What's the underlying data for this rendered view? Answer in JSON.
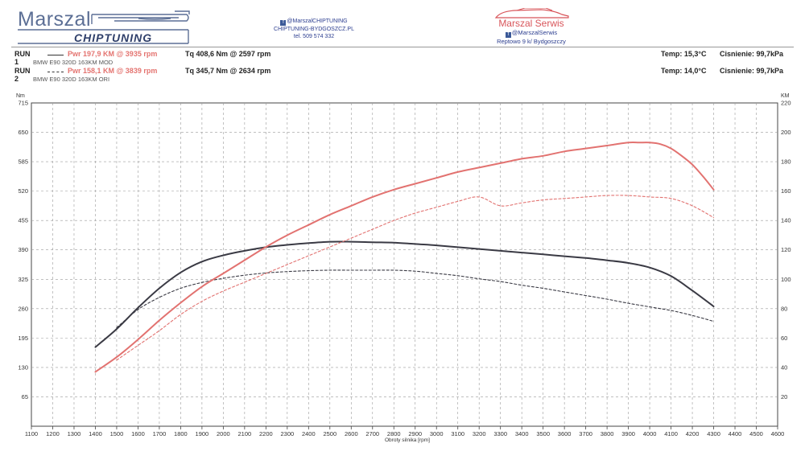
{
  "header": {
    "brand_top": "Marszal",
    "brand_bottom": "CHIPTUNING",
    "contact": {
      "facebook": "@MarszalCHIPTUNING",
      "website": "CHIPTUNING-BYDGOSZCZ.PL",
      "phone": "tel. 509 574 332"
    },
    "serwis": {
      "name": "Marszal Serwis",
      "facebook": "@MarszalSerwis",
      "address": "Reptowo 9 k/ Bydgoszczy"
    }
  },
  "runs": [
    {
      "label": "RUN 1",
      "pwr": "Pwr  197,9 KM @ 3935 rpm",
      "tq": "Tq  408,6 Nm @ 2597 rpm",
      "car": "BMW E90 320D 163KM MOD",
      "temp": "Temp: 15,3°C",
      "pressure": "Cisnienie: 99,7kPa",
      "style": "solid"
    },
    {
      "label": "RUN 2",
      "pwr": "Pwr  158,1 KM @ 3839 rpm",
      "tq": "Tq  345,7 Nm @ 2634 rpm",
      "car": "BMW E90 320D 163KM ORI",
      "temp": "Temp: 14,0°C",
      "pressure": "Cisnienie: 99,7kPa",
      "style": "dashed"
    }
  ],
  "chart_data": {
    "type": "line",
    "xlabel": "Obroty silnika [rpm]",
    "ylabel_left": "Nm",
    "ylabel_right": "KM",
    "xlim": [
      1100,
      4600
    ],
    "x_ticks": [
      1100,
      1200,
      1300,
      1400,
      1500,
      1600,
      1700,
      1800,
      1900,
      2000,
      2100,
      2200,
      2300,
      2400,
      2500,
      2600,
      2700,
      2800,
      2900,
      3000,
      3100,
      3200,
      3300,
      3400,
      3500,
      3600,
      3700,
      3800,
      3900,
      4000,
      4100,
      4200,
      4300,
      4400,
      4500,
      4600
    ],
    "ylim_left": [
      0,
      715
    ],
    "y_ticks_left": [
      65,
      130,
      195,
      260,
      325,
      390,
      455,
      520,
      585,
      650,
      715
    ],
    "ylim_right": [
      0,
      220
    ],
    "y_ticks_right": [
      20,
      40,
      60,
      80,
      100,
      120,
      140,
      160,
      180,
      200,
      220
    ],
    "colors": {
      "torque": "#3a3a44",
      "power": "#e27270",
      "grid": "#9a9a9a"
    },
    "series": [
      {
        "name": "RUN 1 Torque (Nm)",
        "axis": "left",
        "style": "solid",
        "color": "torque",
        "x": [
          1400,
          1500,
          1600,
          1700,
          1800,
          1900,
          2000,
          2100,
          2200,
          2300,
          2400,
          2500,
          2600,
          2700,
          2800,
          2900,
          3000,
          3100,
          3200,
          3300,
          3400,
          3500,
          3600,
          3700,
          3800,
          3900,
          4000,
          4100,
          4200,
          4300
        ],
        "y": [
          175,
          215,
          262,
          305,
          340,
          364,
          378,
          388,
          396,
          401,
          405,
          408,
          408,
          407,
          406,
          403,
          400,
          396,
          392,
          388,
          384,
          380,
          376,
          372,
          367,
          361,
          351,
          332,
          300,
          265
        ]
      },
      {
        "name": "RUN 2 Torque (Nm)",
        "axis": "left",
        "style": "dashed",
        "color": "torque",
        "x": [
          1500,
          1600,
          1700,
          1800,
          1900,
          2000,
          2100,
          2200,
          2300,
          2400,
          2500,
          2600,
          2700,
          2800,
          2900,
          3000,
          3100,
          3200,
          3300,
          3400,
          3500,
          3600,
          3700,
          3800,
          3900,
          4000,
          4100,
          4200,
          4300
        ],
        "y": [
          218,
          258,
          285,
          305,
          318,
          327,
          334,
          339,
          342,
          344,
          345,
          345,
          345,
          345,
          343,
          338,
          333,
          326,
          320,
          312,
          305,
          297,
          289,
          281,
          272,
          264,
          256,
          245,
          232
        ]
      },
      {
        "name": "RUN 1 Power (KM)",
        "axis": "right",
        "style": "solid",
        "color": "power",
        "x": [
          1400,
          1500,
          1600,
          1700,
          1800,
          1900,
          2000,
          2100,
          2200,
          2300,
          2400,
          2500,
          2600,
          2700,
          2800,
          2900,
          3000,
          3100,
          3200,
          3300,
          3400,
          3500,
          3600,
          3700,
          3800,
          3900,
          3950,
          4000,
          4050,
          4100,
          4150,
          4200,
          4250,
          4300
        ],
        "y": [
          37,
          47,
          59,
          72,
          84,
          95,
          104,
          113,
          122,
          130,
          137,
          144,
          150,
          156,
          161,
          165,
          169,
          173,
          176,
          179,
          182,
          184,
          187,
          189,
          191,
          193,
          193,
          193,
          192,
          189,
          184,
          178,
          170,
          161
        ]
      },
      {
        "name": "RUN 2 Power (KM)",
        "axis": "right",
        "style": "dashed",
        "color": "power",
        "x": [
          1500,
          1600,
          1700,
          1800,
          1900,
          2000,
          2100,
          2200,
          2300,
          2400,
          2500,
          2600,
          2700,
          2800,
          2900,
          3000,
          3100,
          3200,
          3300,
          3400,
          3500,
          3600,
          3700,
          3800,
          3900,
          4000,
          4100,
          4200,
          4300
        ],
        "y": [
          45,
          55,
          65,
          76,
          85,
          92,
          98,
          104,
          110,
          116,
          122,
          128,
          134,
          140,
          145,
          149,
          153,
          156,
          150,
          152,
          154,
          155,
          156,
          157,
          157,
          156,
          155,
          150,
          142
        ]
      }
    ]
  }
}
